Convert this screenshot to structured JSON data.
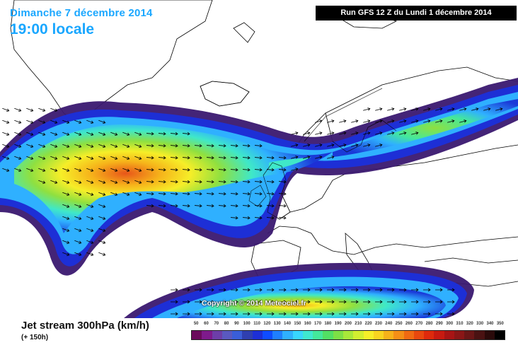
{
  "header": {
    "date_line": "Dimanche 7 décembre 2014",
    "time_line": "19:00 locale",
    "run_label": "Run GFS 12 Z du Lundi 1 décembre 2014"
  },
  "map": {
    "copyright": "Copyright © 2014 Meteociel.fr"
  },
  "footer": {
    "title": "Jet stream 300hPa (km/h)",
    "lead_time": "(+ 150h)"
  },
  "legend": {
    "values": [
      "50",
      "60",
      "70",
      "80",
      "90",
      "100",
      "110",
      "120",
      "130",
      "140",
      "150",
      "160",
      "170",
      "180",
      "190",
      "200",
      "210",
      "220",
      "230",
      "240",
      "250",
      "260",
      "270",
      "280",
      "290",
      "300",
      "310",
      "320",
      "330",
      "340",
      "350"
    ],
    "colors": [
      "#6b0a5c",
      "#7e1a8c",
      "#6d3ea8",
      "#5a59c0",
      "#3a5ed8",
      "#2f3fb0",
      "#1d2fd6",
      "#0f4cff",
      "#1f7fff",
      "#2fb0ff",
      "#38d6ff",
      "#3fe8d0",
      "#44e89b",
      "#52e064",
      "#7de046",
      "#a8e83a",
      "#d2ee30",
      "#f6ee28",
      "#f8d420",
      "#f6b21a",
      "#f48f16",
      "#f06a12",
      "#e8480e",
      "#de2a0c",
      "#c81a10",
      "#a81414",
      "#8a1616",
      "#6a1616",
      "#4a1212",
      "#2a0a0a",
      "#000000"
    ]
  }
}
